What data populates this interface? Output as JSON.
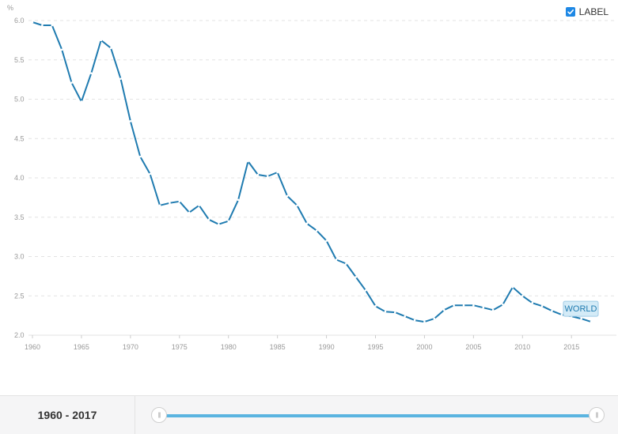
{
  "label_toggle": {
    "text": "LABEL",
    "checked": true,
    "check_color": "#1e88e5"
  },
  "range_label": "1960 - 2017",
  "colors": {
    "line": "#1f7bb0",
    "grid": "#e3e3e3",
    "track": "#5ab4e0",
    "series_label_bg": "#d4ebf7"
  },
  "chart_data": {
    "type": "line",
    "ylabel": "%",
    "ylim": [
      2.0,
      6.0
    ],
    "yticks": [
      "2.0",
      "2.5",
      "3.0",
      "3.5",
      "4.0",
      "4.5",
      "5.0",
      "5.5",
      "6.0"
    ],
    "xlim": [
      1960,
      2017
    ],
    "xticks": [
      "1960",
      "1965",
      "1970",
      "1975",
      "1980",
      "1985",
      "1990",
      "1995",
      "2000",
      "2005",
      "2010",
      "2015"
    ],
    "grid": "horizontal dashed",
    "series": [
      {
        "name": "WORLD",
        "x": [
          1960,
          1961,
          1962,
          1963,
          1964,
          1965,
          1966,
          1967,
          1968,
          1969,
          1970,
          1971,
          1972,
          1973,
          1974,
          1975,
          1976,
          1977,
          1978,
          1979,
          1980,
          1981,
          1982,
          1983,
          1984,
          1985,
          1986,
          1987,
          1988,
          1989,
          1990,
          1991,
          1992,
          1993,
          1994,
          1995,
          1996,
          1997,
          1998,
          1999,
          2000,
          2001,
          2002,
          2003,
          2004,
          2005,
          2006,
          2007,
          2008,
          2009,
          2010,
          2011,
          2012,
          2013,
          2014,
          2015,
          2016,
          2017
        ],
        "y": [
          5.98,
          5.94,
          5.94,
          5.63,
          5.21,
          4.97,
          5.33,
          5.75,
          5.65,
          5.26,
          4.72,
          4.27,
          4.05,
          3.65,
          3.68,
          3.7,
          3.56,
          3.65,
          3.47,
          3.41,
          3.45,
          3.72,
          4.21,
          4.04,
          4.02,
          4.07,
          3.77,
          3.65,
          3.42,
          3.33,
          3.2,
          2.96,
          2.91,
          2.74,
          2.57,
          2.37,
          2.3,
          2.29,
          2.24,
          2.19,
          2.17,
          2.21,
          2.32,
          2.38,
          2.38,
          2.38,
          2.35,
          2.32,
          2.39,
          2.61,
          2.5,
          2.41,
          2.37,
          2.31,
          2.26,
          2.24,
          2.21,
          2.17
        ]
      }
    ]
  }
}
